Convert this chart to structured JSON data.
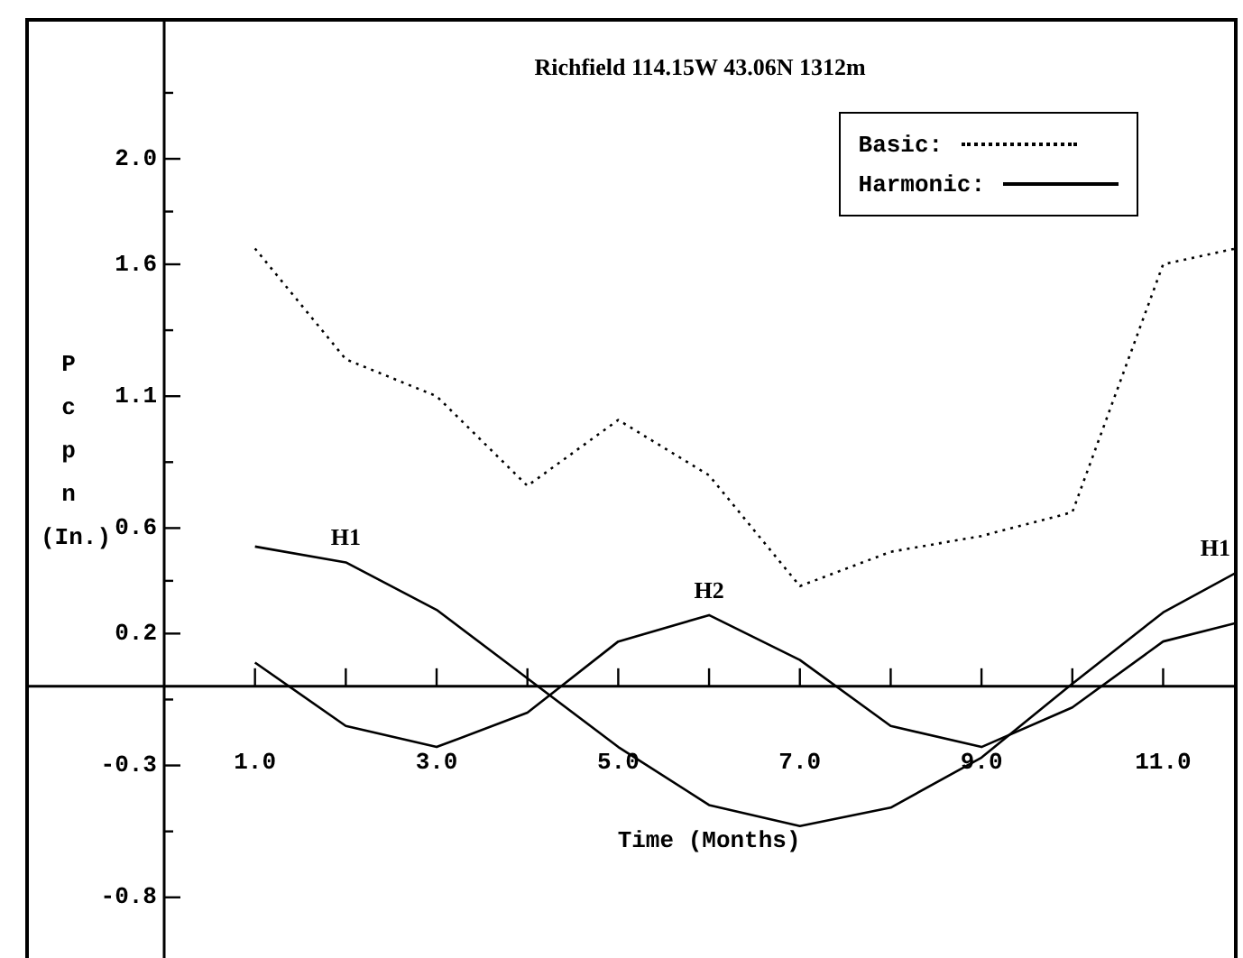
{
  "chart_data": {
    "type": "line",
    "title": "Richfield 114.15W 43.06N 1312m",
    "xlabel": "Time (Months)",
    "ylabel": "Pcpn (In.)",
    "xlim": [
      0,
      11.8
    ],
    "xticks": [
      {
        "value": 1,
        "label": "1.0"
      },
      {
        "value": 2,
        "label": null
      },
      {
        "value": 3,
        "label": "3.0"
      },
      {
        "value": 4,
        "label": null
      },
      {
        "value": 5,
        "label": "5.0"
      },
      {
        "value": 6,
        "label": null
      },
      {
        "value": 7,
        "label": "7.0"
      },
      {
        "value": 8,
        "label": null
      },
      {
        "value": 9,
        "label": "9.0"
      },
      {
        "value": 10,
        "label": null
      },
      {
        "value": 11,
        "label": "11.0"
      }
    ],
    "ylim": [
      -1.03,
      2.52
    ],
    "yticks": [
      -0.8,
      {
        "value": -0.55,
        "label": null
      },
      -0.3,
      {
        "value": -0.05,
        "label": null
      },
      0.2,
      {
        "value": 0.4,
        "label": null
      },
      0.6,
      {
        "value": 0.85,
        "label": null
      },
      1.1,
      {
        "value": 1.35,
        "label": null
      },
      1.6,
      {
        "value": 1.8,
        "label": null
      },
      {
        "value": 2.0,
        "label": "2.0"
      },
      {
        "value": 2.25,
        "label": null
      }
    ],
    "x": [
      1,
      2,
      3,
      4,
      5,
      6,
      7,
      8,
      9,
      10,
      11,
      11.8
    ],
    "series": [
      {
        "name": "Basic:",
        "color": "#000000",
        "line_style": "dotted",
        "values": [
          1.66,
          1.24,
          1.1,
          0.76,
          1.01,
          0.8,
          0.38,
          0.51,
          0.57,
          0.66,
          1.6,
          1.66
        ]
      },
      {
        "name": "Harmonic:",
        "color": "#000000",
        "line_style": "solid",
        "values": [
          0.53,
          0.47,
          0.29,
          0.03,
          -0.23,
          -0.45,
          -0.53,
          -0.46,
          -0.27,
          0.01,
          0.28,
          0.43
        ]
      },
      {
        "color": "#000000",
        "line_style": "solid",
        "values": [
          0.09,
          -0.15,
          -0.23,
          -0.1,
          0.17,
          0.27,
          0.1,
          -0.15,
          -0.23,
          -0.08,
          0.17,
          0.24
        ]
      }
    ],
    "annotations": [
      {
        "text": "H1",
        "x": 2,
        "y": 0.47
      },
      {
        "text": "H2",
        "x": 6,
        "y": 0.27
      },
      {
        "text": "H1",
        "x": 11.8,
        "y": 0.43
      }
    ],
    "legend": "top right",
    "grid": false,
    "marker": "none"
  }
}
